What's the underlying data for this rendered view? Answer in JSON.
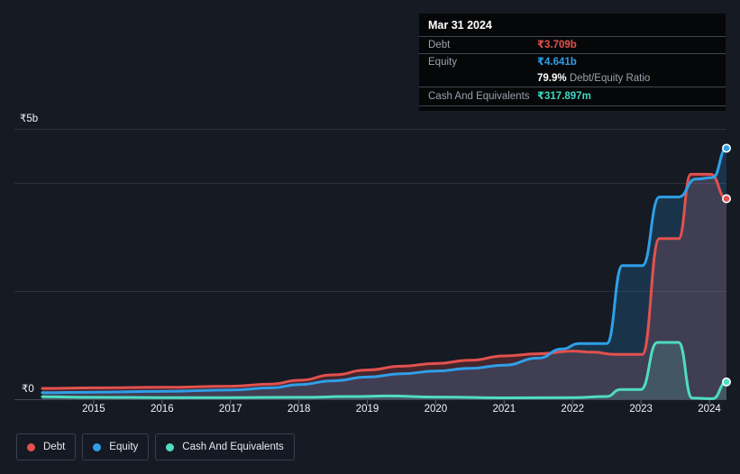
{
  "colors": {
    "background": "#151a23",
    "debt": "#e2514e",
    "equity": "#2f9fe8",
    "cash": "#4fdcc2",
    "grid": "#2b303c",
    "axis": "#434956",
    "tick": "#5a5f6a",
    "text": "#f2f4f6",
    "muted": "#9aa1ac"
  },
  "tooltip": {
    "date": "Mar 31 2024",
    "debt_label": "Debt",
    "debt_value": "₹3.709b",
    "equity_label": "Equity",
    "equity_value": "₹4.641b",
    "ratio_value": "79.9%",
    "ratio_label": "Debt/Equity Ratio",
    "cash_label": "Cash And Equivalents",
    "cash_value": "₹317.897m"
  },
  "legend": {
    "debt": "Debt",
    "equity": "Equity",
    "cash": "Cash And Equivalents"
  },
  "axis": {
    "y_top_label": "₹5b",
    "y_zero_label": "₹0",
    "years": [
      "2015",
      "2016",
      "2017",
      "2018",
      "2019",
      "2020",
      "2021",
      "2022",
      "2023",
      "2024"
    ]
  },
  "chart_data": {
    "type": "area",
    "y_unit": "₹ billions",
    "ylim": [
      0,
      5
    ],
    "x_range": [
      2014.25,
      2024.25
    ],
    "grid_values": [
      5,
      4,
      2
    ],
    "legend_position": "bottom-left",
    "end_markers": true,
    "series": [
      {
        "name": "Debt",
        "color": "#e2514e",
        "fill_opacity": 0.24,
        "x": [
          2014.25,
          2015,
          2016,
          2017,
          2017.6,
          2018,
          2018.5,
          2019,
          2019.5,
          2020,
          2020.5,
          2021,
          2021.5,
          2022,
          2022.3,
          2022.6,
          2023.02,
          2023.27,
          2023.55,
          2023.73,
          2024.02,
          2024.25
        ],
        "values": [
          0.2,
          0.21,
          0.22,
          0.24,
          0.28,
          0.35,
          0.45,
          0.54,
          0.61,
          0.66,
          0.72,
          0.8,
          0.84,
          0.89,
          0.87,
          0.83,
          0.83,
          2.97,
          2.97,
          4.16,
          4.16,
          3.709
        ]
      },
      {
        "name": "Equity",
        "color": "#2f9fe8",
        "fill_opacity": 0.2,
        "x": [
          2014.25,
          2015,
          2016,
          2017,
          2017.6,
          2018,
          2018.5,
          2019,
          2019.5,
          2020,
          2020.5,
          2021,
          2021.5,
          2021.85,
          2022.1,
          2022.5,
          2022.73,
          2023.02,
          2023.27,
          2023.55,
          2023.8,
          2024.05,
          2024.25
        ],
        "values": [
          0.12,
          0.13,
          0.145,
          0.17,
          0.21,
          0.27,
          0.34,
          0.41,
          0.47,
          0.52,
          0.57,
          0.63,
          0.76,
          0.93,
          1.03,
          1.03,
          2.47,
          2.47,
          3.74,
          3.74,
          4.07,
          4.1,
          4.641
        ]
      },
      {
        "name": "Cash And Equivalents",
        "color": "#4fdcc2",
        "fill_opacity": 0.16,
        "x": [
          2014.25,
          2015,
          2016,
          2017,
          2018,
          2018.8,
          2019.3,
          2020,
          2021,
          2022,
          2022.5,
          2022.7,
          2023.0,
          2023.24,
          2023.55,
          2023.75,
          2024.05,
          2024.25
        ],
        "values": [
          0.045,
          0.035,
          0.03,
          0.03,
          0.035,
          0.05,
          0.06,
          0.04,
          0.025,
          0.03,
          0.05,
          0.18,
          0.18,
          1.05,
          1.05,
          0.02,
          0.01,
          0.318
        ]
      }
    ]
  }
}
